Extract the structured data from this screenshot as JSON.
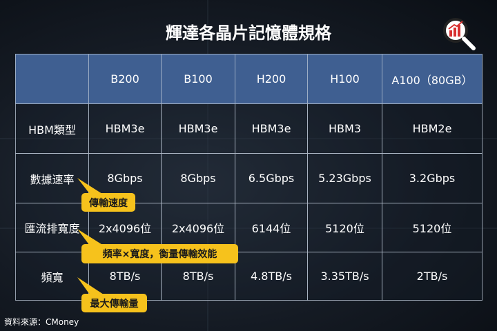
{
  "title": "輝達各晶片記憶體規格",
  "table": {
    "columns": [
      "B200",
      "B100",
      "H200",
      "H100",
      "A100（80GB）"
    ],
    "rows": [
      {
        "label": "HBM類型",
        "cells": [
          "HBM3e",
          "HBM3e",
          "HBM3e",
          "HBM3",
          "HBM2e"
        ]
      },
      {
        "label": "數據速率",
        "cells": [
          "8Gbps",
          "8Gbps",
          "6.5Gbps",
          "5.23Gbps",
          "3.2Gbps"
        ]
      },
      {
        "label": "匯流排寬度",
        "cells": [
          "2x4096位",
          "2x4096位",
          "6144位",
          "5120位",
          "5120位"
        ]
      },
      {
        "label": "頻寬",
        "cells": [
          "8TB/s",
          "8TB/s",
          "4.8TB/s",
          "3.35TB/s",
          "2TB/s"
        ]
      }
    ]
  },
  "callouts": [
    "傳輸速度",
    "頻率×寬度，衡量傳輸效能",
    "最大傳輸量"
  ],
  "source": "資料來源：CMoney"
}
